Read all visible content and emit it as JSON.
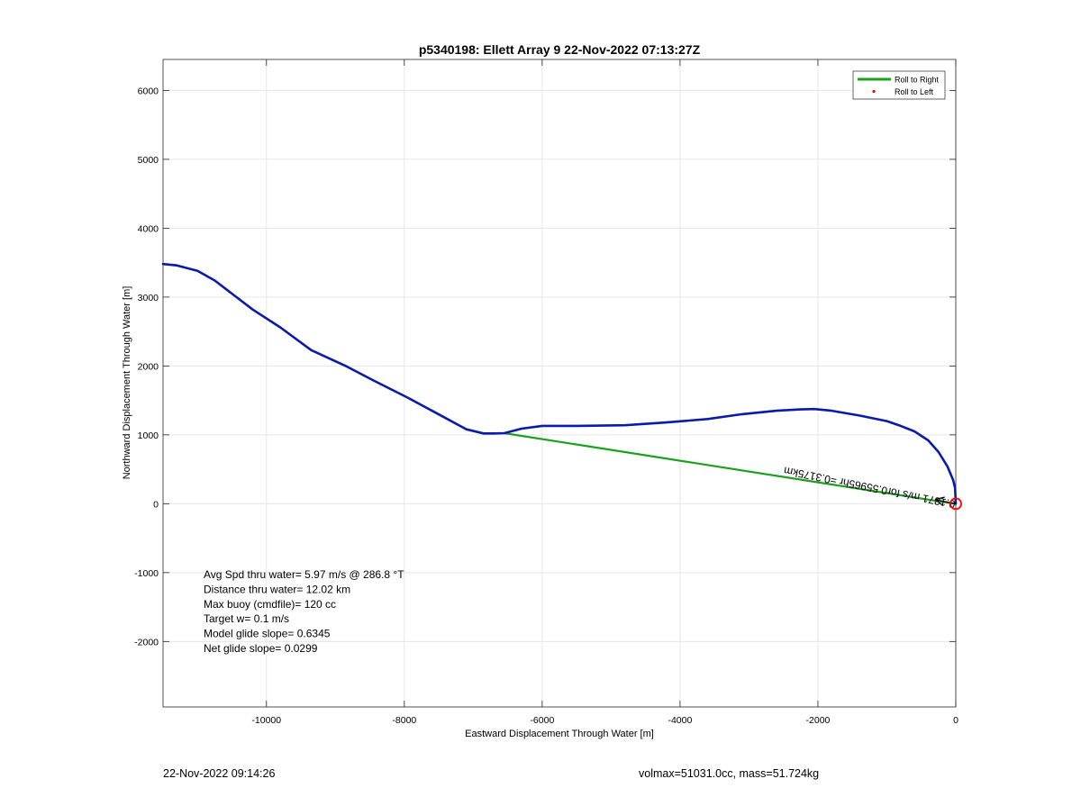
{
  "chart_data": {
    "type": "line",
    "title": "p5340198: Ellett Array 9 22-Nov-2022 07:13:27Z",
    "xlabel": "Eastward Displacement Through Water [m]",
    "ylabel": "Northward Displacement Through Water [m]",
    "xlim": [
      -11500,
      0
    ],
    "ylim": [
      -2950,
      6450
    ],
    "x_ticks": [
      -10000,
      -8000,
      -6000,
      -4000,
      -2000,
      0
    ],
    "y_ticks": [
      -2000,
      -1000,
      0,
      1000,
      2000,
      3000,
      4000,
      5000,
      6000
    ],
    "grid": true,
    "legend": {
      "placement": "top-right",
      "entries": [
        {
          "label": "Roll to Right",
          "color": "#1aa01a",
          "marker": "line"
        },
        {
          "label": "Roll to Left",
          "color": "#ff0000",
          "marker": "dot"
        }
      ]
    },
    "series": [
      {
        "color": "#0a1aaa",
        "style": "line",
        "x": [
          -11500,
          -11300,
          -11000,
          -10750,
          -10500,
          -10200,
          -9800,
          -9350,
          -8850,
          -8450,
          -7950,
          -7450,
          -7100,
          -6850,
          -6700,
          -6550,
          -6300,
          -6000,
          -5500,
          -4800,
          -4200,
          -3600,
          -3100,
          -2600,
          -2250,
          -2050,
          -1800,
          -1400,
          -1000,
          -800,
          -600,
          -400,
          -250,
          -120,
          -40,
          -10,
          0
        ],
        "y": [
          3480,
          3460,
          3380,
          3240,
          3050,
          2820,
          2560,
          2230,
          2000,
          1790,
          1540,
          1270,
          1080,
          1020,
          1020,
          1025,
          1090,
          1130,
          1130,
          1140,
          1180,
          1230,
          1300,
          1350,
          1370,
          1375,
          1350,
          1280,
          1200,
          1130,
          1050,
          920,
          750,
          540,
          350,
          230,
          0
        ]
      },
      {
        "color": "#1aa01a",
        "style": "line",
        "x": [
          -6550,
          -10
        ],
        "y": [
          1025,
          0
        ]
      }
    ],
    "annotations": {
      "current_vector": {
        "text": "0.1371 m/s for0.55965hr =0.3175km",
        "color": "#000000",
        "start": [
          0,
          0
        ],
        "end": [
          -300,
          60
        ]
      },
      "end_marker": {
        "x": 0,
        "y": 0,
        "color": "#ff0000",
        "shape": "circle"
      },
      "stats_lines": [
        "Avg Spd thru water=  5.97 m/s @ 286.8 °T",
        "Distance thru water= 12.02 km",
        "Max buoy (cmdfile)= 120 cc",
        "Target w= 0.1 m/s",
        "Model glide slope= 0.6345",
        "Net glide slope= 0.0299"
      ]
    }
  },
  "footer": {
    "timestamp": "22-Nov-2022 09:14:26",
    "vehicle_info": "volmax=51031.0cc, mass=51.724kg"
  }
}
